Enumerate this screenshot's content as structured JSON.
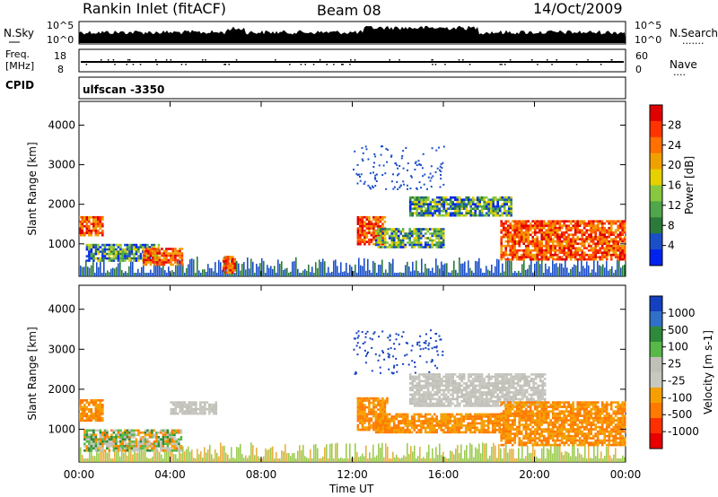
{
  "header": {
    "title": "Rankin Inlet (fitACF)",
    "beam": "Beam 08",
    "date": "14/Oct/2009"
  },
  "status_panels": {
    "nsky_label": "N.Sky",
    "nsearch_label": "N.Search",
    "nsearch_marker": ".......",
    "freq_label_1": "Freq.",
    "freq_label_2": "[MHz]",
    "nave_label": "Nave",
    "nave_marker": "....",
    "cpid_label": "CPID",
    "cpid_value": "ulfscan -3350",
    "nsky_ticks": [
      "10^5",
      "10^0"
    ],
    "nsearch_ticks": [
      "10^5",
      "10^0"
    ],
    "freq_ticks": [
      "18",
      "8"
    ],
    "nave_ticks": [
      "60",
      "0"
    ]
  },
  "chart_data": [
    {
      "type": "heatmap",
      "name": "power-panel",
      "ylabel": "Slant Range [km]",
      "yticks": [
        1000,
        2000,
        3000,
        4000
      ],
      "ylim": [
        180,
        4600
      ],
      "xlim": [
        "00:00",
        "24:00"
      ],
      "colorbar": {
        "label": "Power [dB]",
        "ticks": [
          "4",
          "8",
          "12",
          "16",
          "20",
          "24",
          "28"
        ],
        "colors": [
          "#0022ee",
          "#1a4fc8",
          "#2b7a3a",
          "#4fa64b",
          "#88c840",
          "#e6d000",
          "#f0a000",
          "#ff7000",
          "#ff3300",
          "#e00000"
        ]
      },
      "echo_regions": [
        {
          "t0": 0.0,
          "t1": 1.0,
          "r0": 1200,
          "r1": 1700,
          "level": "high"
        },
        {
          "t0": 0.3,
          "t1": 3.5,
          "r0": 550,
          "r1": 1000,
          "level": "mid"
        },
        {
          "t0": 2.8,
          "t1": 4.5,
          "r0": 450,
          "r1": 900,
          "level": "high"
        },
        {
          "t0": 6.3,
          "t1": 6.8,
          "r0": 300,
          "r1": 700,
          "level": "high"
        },
        {
          "t0": 12.2,
          "t1": 13.4,
          "r0": 1000,
          "r1": 1700,
          "level": "high"
        },
        {
          "t0": 13.0,
          "t1": 16.0,
          "r0": 900,
          "r1": 1400,
          "level": "mid"
        },
        {
          "t0": 14.5,
          "t1": 19.0,
          "r0": 1700,
          "r1": 2200,
          "level": "mid"
        },
        {
          "t0": 18.5,
          "t1": 24.0,
          "r0": 600,
          "r1": 1600,
          "level": "high"
        }
      ]
    },
    {
      "type": "heatmap",
      "name": "velocity-panel",
      "ylabel": "Slant Range [km]",
      "yticks": [
        1000,
        2000,
        3000,
        4000
      ],
      "ylim": [
        180,
        4600
      ],
      "xlabel": "Time UT",
      "xticks": [
        "00:00",
        "04:00",
        "08:00",
        "12:00",
        "16:00",
        "20:00",
        "00:00"
      ],
      "xlim": [
        "00:00",
        "24:00"
      ],
      "colorbar": {
        "label": "Velocity [m s-1]",
        "ticks": [
          "1000",
          "500",
          "100",
          "25",
          "-25",
          "-100",
          "-500",
          "-1000"
        ],
        "colors": [
          "#1540c0",
          "#3070c8",
          "#2e8a3a",
          "#58b848",
          "#c0c0b8",
          "#c8c8c0",
          "#f5a000",
          "#ff7a00",
          "#ff3000",
          "#e80000"
        ]
      },
      "echo_regions": [
        {
          "t0": 0.0,
          "t1": 1.0,
          "r0": 1200,
          "r1": 1750,
          "level": "neg"
        },
        {
          "t0": 0.2,
          "t1": 4.5,
          "r0": 450,
          "r1": 1000,
          "level": "mixed"
        },
        {
          "t0": 4.0,
          "t1": 6.0,
          "r0": 1400,
          "r1": 1700,
          "level": "zero"
        },
        {
          "t0": 12.2,
          "t1": 13.5,
          "r0": 1000,
          "r1": 1800,
          "level": "neg"
        },
        {
          "t0": 13.0,
          "t1": 18.5,
          "r0": 900,
          "r1": 1400,
          "level": "neg"
        },
        {
          "t0": 14.5,
          "t1": 20.5,
          "r0": 1600,
          "r1": 2400,
          "level": "zero"
        },
        {
          "t0": 18.5,
          "t1": 24.0,
          "r0": 600,
          "r1": 1700,
          "level": "neg"
        }
      ]
    }
  ]
}
